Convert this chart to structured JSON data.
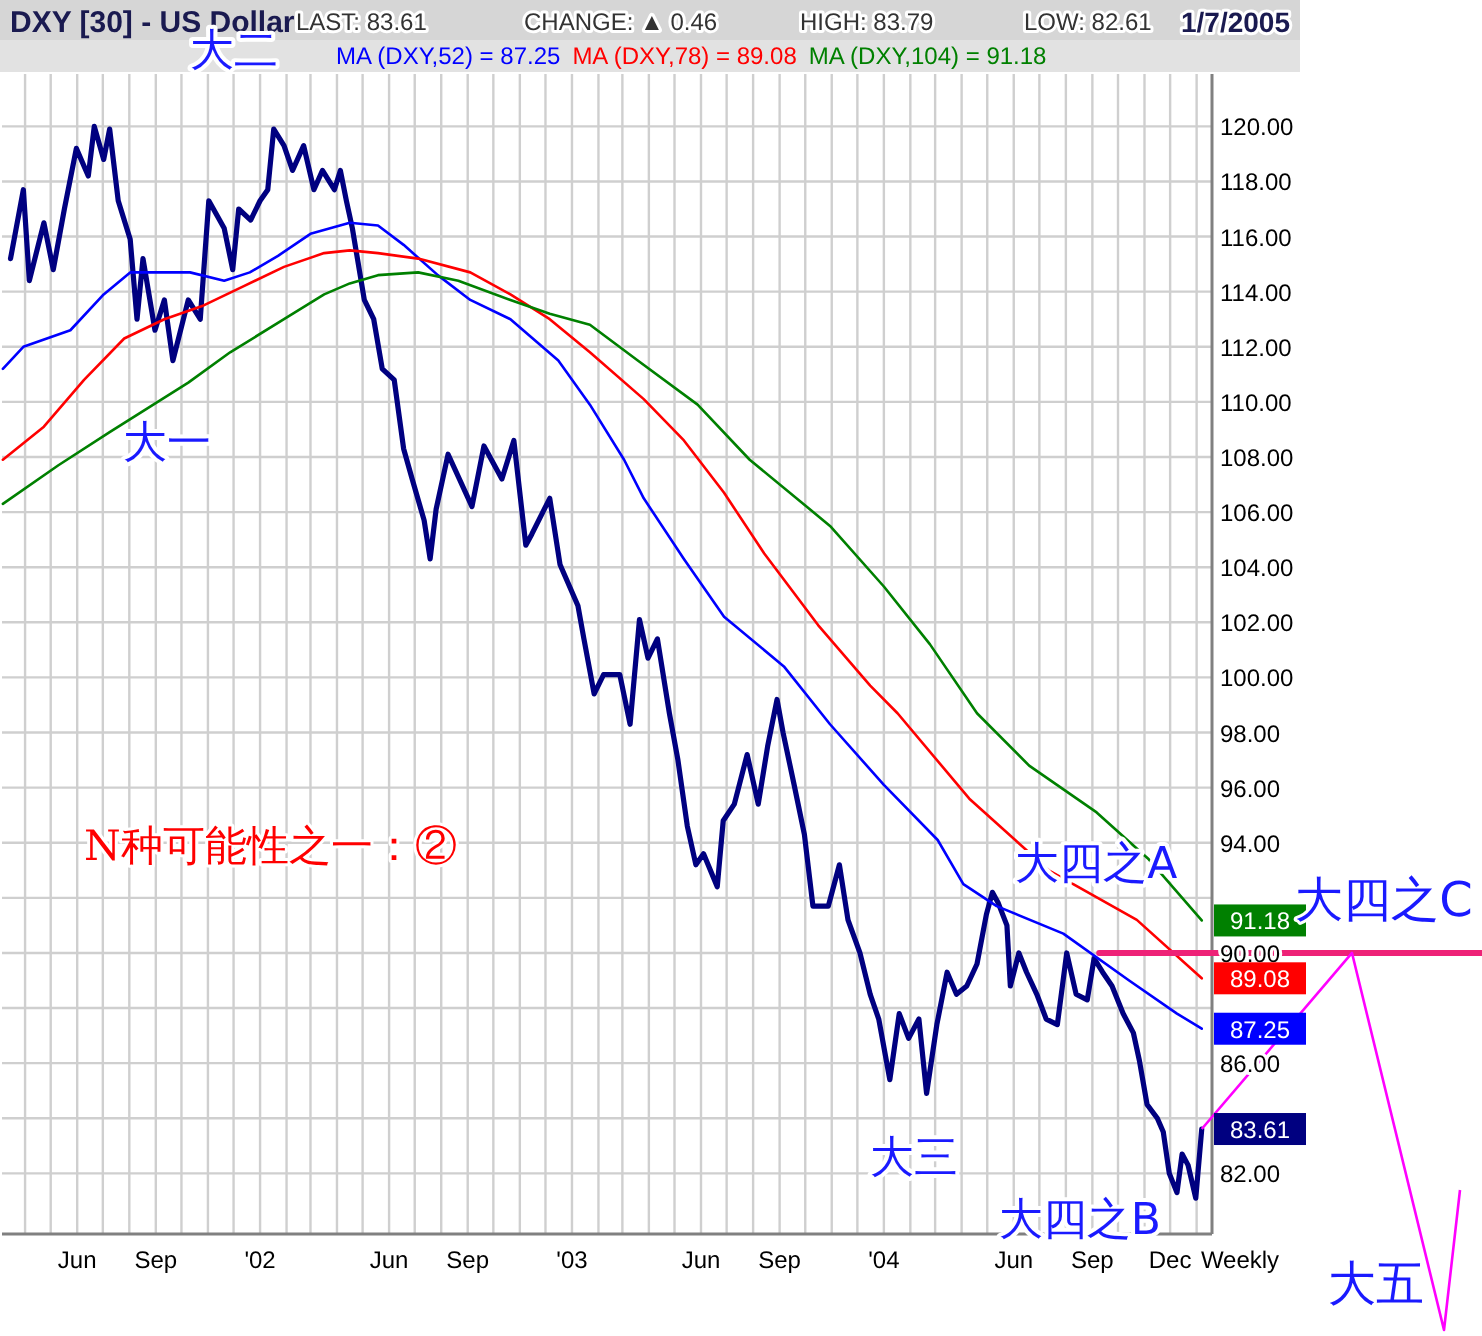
{
  "chart_data": {
    "type": "line",
    "title": "DXY [30] - US Dollar",
    "xlim": [
      "2001-03-05",
      "2005-01-19"
    ],
    "ylim": [
      79.8,
      121.9
    ],
    "xticks": [
      {
        "value": "2001-04-01",
        "label": null
      },
      {
        "value": "2001-05-01",
        "label": null
      },
      {
        "value": "2001-06-01",
        "label": "Jun"
      },
      {
        "value": "2001-07-01",
        "label": null
      },
      {
        "value": "2001-08-01",
        "label": null
      },
      {
        "value": "2001-09-01",
        "label": "Sep"
      },
      {
        "value": "2001-10-01",
        "label": null
      },
      {
        "value": "2001-11-01",
        "label": null
      },
      {
        "value": "2001-12-01",
        "label": null
      },
      {
        "value": "2002-01-01",
        "label": "'02"
      },
      {
        "value": "2002-02-01",
        "label": null
      },
      {
        "value": "2002-03-01",
        "label": null
      },
      {
        "value": "2002-04-01",
        "label": null
      },
      {
        "value": "2002-05-01",
        "label": null
      },
      {
        "value": "2002-06-01",
        "label": "Jun"
      },
      {
        "value": "2002-07-01",
        "label": null
      },
      {
        "value": "2002-08-01",
        "label": null
      },
      {
        "value": "2002-09-01",
        "label": "Sep"
      },
      {
        "value": "2002-10-01",
        "label": null
      },
      {
        "value": "2002-11-01",
        "label": null
      },
      {
        "value": "2002-12-01",
        "label": null
      },
      {
        "value": "2003-01-01",
        "label": "'03"
      },
      {
        "value": "2003-02-01",
        "label": null
      },
      {
        "value": "2003-03-01",
        "label": null
      },
      {
        "value": "2003-04-01",
        "label": null
      },
      {
        "value": "2003-05-01",
        "label": null
      },
      {
        "value": "2003-06-01",
        "label": "Jun"
      },
      {
        "value": "2003-07-01",
        "label": null
      },
      {
        "value": "2003-08-01",
        "label": null
      },
      {
        "value": "2003-09-01",
        "label": "Sep"
      },
      {
        "value": "2003-10-01",
        "label": null
      },
      {
        "value": "2003-11-01",
        "label": null
      },
      {
        "value": "2003-12-01",
        "label": null
      },
      {
        "value": "2004-01-01",
        "label": "'04"
      },
      {
        "value": "2004-02-01",
        "label": null
      },
      {
        "value": "2004-03-01",
        "label": null
      },
      {
        "value": "2004-04-01",
        "label": null
      },
      {
        "value": "2004-05-01",
        "label": null
      },
      {
        "value": "2004-06-01",
        "label": "Jun"
      },
      {
        "value": "2004-07-01",
        "label": null
      },
      {
        "value": "2004-08-01",
        "label": null
      },
      {
        "value": "2004-09-01",
        "label": "Sep"
      },
      {
        "value": "2004-10-01",
        "label": null
      },
      {
        "value": "2004-11-01",
        "label": null
      },
      {
        "value": "2004-12-01",
        "label": "Dec"
      },
      {
        "value": "2005-01-01",
        "label": null
      }
    ],
    "yticks": [
      {
        "value": 82,
        "label": "82.00"
      },
      {
        "value": 84,
        "label": null
      },
      {
        "value": 86,
        "label": "86.00"
      },
      {
        "value": 88,
        "label": null
      },
      {
        "value": 90,
        "label": "90.00"
      },
      {
        "value": 92,
        "label": null
      },
      {
        "value": 94,
        "label": "94.00"
      },
      {
        "value": 96,
        "label": "96.00"
      },
      {
        "value": 98,
        "label": "98.00"
      },
      {
        "value": 100,
        "label": "100.00"
      },
      {
        "value": 102,
        "label": "102.00"
      },
      {
        "value": 104,
        "label": "104.00"
      },
      {
        "value": 106,
        "label": "106.00"
      },
      {
        "value": 108,
        "label": "108.00"
      },
      {
        "value": 110,
        "label": "110.00"
      },
      {
        "value": 112,
        "label": "112.00"
      },
      {
        "value": 114,
        "label": "114.00"
      },
      {
        "value": 116,
        "label": "116.00"
      },
      {
        "value": 118,
        "label": "118.00"
      },
      {
        "value": 120,
        "label": "120.00"
      }
    ],
    "grid": true,
    "legend": "top",
    "marker": "none",
    "line_style": "solid",
    "series": [
      {
        "type": "line",
        "color": "#000080",
        "x": [
          "2001-03-15",
          "2001-03-30",
          "2001-04-06",
          "2001-04-23",
          "2001-05-04",
          "2001-05-17",
          "2001-05-31",
          "2001-06-14",
          "2001-06-21",
          "2001-07-02",
          "2001-07-09",
          "2001-07-19",
          "2001-08-02",
          "2001-08-10",
          "2001-08-17",
          "2001-08-31",
          "2001-09-11",
          "2001-09-21",
          "2001-10-09",
          "2001-10-23",
          "2001-11-02",
          "2001-11-20",
          "2001-11-30",
          "2001-12-07",
          "2001-12-21",
          "2002-01-01",
          "2002-01-10",
          "2002-01-17",
          "2002-01-29",
          "2002-02-08",
          "2002-02-21",
          "2002-03-05",
          "2002-03-15",
          "2002-03-29",
          "2002-04-05",
          "2002-04-12",
          "2002-04-19",
          "2002-05-03",
          "2002-05-14",
          "2002-05-24",
          "2002-06-07",
          "2002-06-18",
          "2002-06-28",
          "2002-07-12",
          "2002-07-19",
          "2002-07-26",
          "2002-08-09",
          "2002-09-06",
          "2002-09-20",
          "2002-10-11",
          "2002-10-25",
          "2002-11-08",
          "2002-11-15",
          "2002-12-06",
          "2002-12-18",
          "2003-01-08",
          "2003-01-15",
          "2003-01-27",
          "2003-02-07",
          "2003-02-26",
          "2003-03-10",
          "2003-03-21",
          "2003-03-31",
          "2003-04-11",
          "2003-04-25",
          "2003-05-05",
          "2003-05-16",
          "2003-05-26",
          "2003-06-04",
          "2003-06-20",
          "2003-06-27",
          "2003-07-10",
          "2003-07-25",
          "2003-08-07",
          "2003-08-18",
          "2003-08-29",
          "2003-09-05",
          "2003-09-18",
          "2003-09-30",
          "2003-10-10",
          "2003-10-28",
          "2003-11-10",
          "2003-11-20",
          "2003-12-04",
          "2003-12-16",
          "2003-12-26",
          "2004-01-08",
          "2004-01-19",
          "2004-01-30",
          "2004-02-11",
          "2004-02-20",
          "2004-03-03",
          "2004-03-15",
          "2004-03-26",
          "2004-04-07",
          "2004-04-19",
          "2004-04-30",
          "2004-05-07",
          "2004-05-14",
          "2004-05-24",
          "2004-05-28",
          "2004-06-07",
          "2004-06-16",
          "2004-06-28",
          "2004-07-09",
          "2004-07-22",
          "2004-08-02",
          "2004-08-13",
          "2004-08-26",
          "2004-09-03",
          "2004-09-13",
          "2004-09-24",
          "2004-10-07",
          "2004-10-19",
          "2004-10-26",
          "2004-11-04",
          "2004-11-16",
          "2004-11-23",
          "2004-11-30",
          "2004-12-09",
          "2004-12-15",
          "2004-12-22",
          "2004-12-31",
          "2005-01-07"
        ],
        "values": [
          115.2,
          117.7,
          114.4,
          116.5,
          114.8,
          117.0,
          119.2,
          118.2,
          120.0,
          118.8,
          119.9,
          117.3,
          115.9,
          113.0,
          115.2,
          112.6,
          113.7,
          111.5,
          113.7,
          113.0,
          117.3,
          116.3,
          114.8,
          117.0,
          116.6,
          117.3,
          117.7,
          119.9,
          119.3,
          118.4,
          119.3,
          117.7,
          118.4,
          117.7,
          118.4,
          117.3,
          116.3,
          113.7,
          113.0,
          111.2,
          110.8,
          108.3,
          107.2,
          105.7,
          104.3,
          106.1,
          108.1,
          106.2,
          108.4,
          107.2,
          108.6,
          104.8,
          105.2,
          106.5,
          104.1,
          102.6,
          101.4,
          99.4,
          100.1,
          100.1,
          98.3,
          102.1,
          100.7,
          101.4,
          98.7,
          97.0,
          94.6,
          93.2,
          93.6,
          92.4,
          94.8,
          95.4,
          97.2,
          95.4,
          97.5,
          99.2,
          98.0,
          96.1,
          94.3,
          91.7,
          91.7,
          93.2,
          91.2,
          90.0,
          88.5,
          87.6,
          85.4,
          87.8,
          86.9,
          87.6,
          84.9,
          87.4,
          89.3,
          88.5,
          88.8,
          89.6,
          91.4,
          92.2,
          91.8,
          91.0,
          88.8,
          90.0,
          89.3,
          88.5,
          87.6,
          87.4,
          90.0,
          88.5,
          88.3,
          89.8,
          89.3,
          88.8,
          87.8,
          87.1,
          86.1,
          84.5,
          84.0,
          83.5,
          82.0,
          81.3,
          82.7,
          82.3,
          81.1,
          83.61
        ],
        "value_labels": [
          null,
          null,
          null,
          null,
          null,
          null,
          null,
          null,
          null,
          null,
          null,
          null,
          null,
          null,
          null,
          null,
          null,
          null,
          null,
          null,
          null,
          null,
          null,
          null,
          null,
          null,
          null,
          null,
          null,
          null,
          null,
          null,
          null,
          null,
          null,
          null,
          null,
          null,
          null,
          null,
          null,
          null,
          null,
          null,
          null,
          null,
          null,
          null,
          null,
          null,
          null,
          null,
          null,
          null,
          null,
          null,
          null,
          null,
          null,
          null,
          null,
          null,
          null,
          null,
          null,
          null,
          null,
          null,
          null,
          null,
          null,
          null,
          null,
          null,
          null,
          null,
          null,
          null,
          null,
          null,
          null,
          null,
          null,
          null,
          null,
          null,
          null,
          null,
          null,
          null,
          null,
          null,
          null,
          null,
          null,
          null,
          null,
          null,
          null,
          null,
          null,
          null,
          null,
          null,
          null,
          null,
          null,
          null,
          null,
          null,
          null,
          null,
          null,
          null,
          null,
          null,
          null,
          null,
          null,
          null,
          null,
          null,
          null,
          "83.61"
        ]
      },
      {
        "type": "line",
        "name": "MA (DXY,52) = 87.25",
        "color": "#0000ff",
        "x": [
          "2001-03-06",
          "2001-03-30",
          "2001-05-24",
          "2001-07-02",
          "2001-08-02",
          "2001-10-11",
          "2001-11-20",
          "2001-12-20",
          "2002-01-22",
          "2002-03-01",
          "2002-04-16",
          "2002-05-19",
          "2002-06-18",
          "2002-07-28",
          "2002-09-04",
          "2002-10-21",
          "2002-12-16",
          "2003-01-22",
          "2003-03-03",
          "2003-03-26",
          "2003-05-12",
          "2003-06-28",
          "2003-09-06",
          "2003-10-30",
          "2004-01-01",
          "2004-03-04",
          "2004-04-03",
          "2004-05-12",
          "2004-07-29",
          "2004-10-14",
          "2004-12-09",
          "2005-01-07"
        ],
        "values": [
          111.2,
          112.0,
          112.6,
          113.9,
          114.7,
          114.7,
          114.4,
          114.7,
          115.3,
          116.1,
          116.5,
          116.4,
          115.7,
          114.6,
          113.7,
          113.0,
          111.5,
          109.9,
          107.9,
          106.5,
          104.3,
          102.2,
          100.4,
          98.3,
          96.1,
          94.1,
          92.5,
          91.7,
          90.7,
          89.0,
          87.8,
          87.25
        ],
        "value_labels": [
          null,
          null,
          null,
          null,
          null,
          null,
          null,
          null,
          null,
          null,
          null,
          null,
          null,
          null,
          null,
          null,
          null,
          null,
          null,
          null,
          null,
          null,
          null,
          null,
          null,
          null,
          null,
          null,
          null,
          null,
          null,
          "87.25"
        ]
      },
      {
        "type": "line",
        "name": "MA (DXY,78) = 89.08",
        "color": "#ff0000",
        "x": [
          "2001-03-06",
          "2001-04-23",
          "2001-06-09",
          "2001-07-26",
          "2001-09-11",
          "2001-10-27",
          "2001-12-13",
          "2002-01-29",
          "2002-03-17",
          "2002-04-16",
          "2002-05-19",
          "2002-07-05",
          "2002-09-04",
          "2002-10-21",
          "2002-12-06",
          "2003-01-22",
          "2003-03-26",
          "2003-05-12",
          "2003-06-28",
          "2003-08-14",
          "2003-10-16",
          "2003-12-16",
          "2004-01-17",
          "2004-04-10",
          "2004-07-12",
          "2004-10-23",
          "2005-01-07"
        ],
        "values": [
          107.9,
          109.1,
          110.8,
          112.3,
          113.0,
          113.5,
          114.2,
          114.9,
          115.4,
          115.5,
          115.4,
          115.2,
          114.7,
          113.9,
          113.0,
          111.8,
          110.1,
          108.6,
          106.7,
          104.5,
          101.9,
          99.7,
          98.7,
          95.6,
          93.0,
          91.2,
          89.08
        ],
        "value_labels": [
          null,
          null,
          null,
          null,
          null,
          null,
          null,
          null,
          null,
          null,
          null,
          null,
          null,
          null,
          null,
          null,
          null,
          null,
          null,
          null,
          null,
          null,
          null,
          null,
          null,
          null,
          "89.08"
        ]
      },
      {
        "type": "line",
        "name": "MA (DXY,104) = 91.18",
        "color": "#008000",
        "x": [
          "2001-03-06",
          "2001-05-10",
          "2001-07-09",
          "2001-10-09",
          "2001-11-27",
          "2002-01-29",
          "2002-03-17",
          "2002-04-16",
          "2002-05-19",
          "2002-07-05",
          "2002-08-21",
          "2002-10-21",
          "2002-12-06",
          "2003-01-22",
          "2003-03-19",
          "2003-05-28",
          "2003-07-28",
          "2003-10-30",
          "2004-01-01",
          "2004-02-24",
          "2004-04-19",
          "2004-06-19",
          "2004-09-06",
          "2004-11-06",
          "2005-01-07"
        ],
        "values": [
          106.3,
          107.7,
          108.9,
          110.7,
          111.8,
          113.0,
          113.9,
          114.3,
          114.6,
          114.7,
          114.4,
          113.7,
          113.2,
          112.8,
          111.5,
          109.9,
          107.9,
          105.5,
          103.3,
          101.2,
          98.7,
          96.8,
          95.1,
          93.4,
          91.18
        ],
        "value_labels": [
          null,
          null,
          null,
          null,
          null,
          null,
          null,
          null,
          null,
          null,
          null,
          null,
          null,
          null,
          null,
          null,
          null,
          null,
          null,
          null,
          null,
          null,
          null,
          null,
          "91.18"
        ]
      },
      {
        "type": "line",
        "color": "#ee2277",
        "x": [
          "2004-09-09",
          "2005-01-19"
        ],
        "values": [
          90,
          90
        ]
      }
    ],
    "annotations": [
      "LAST: 83.61",
      "CHANGE: ▲ 0.46",
      "HIGH: 83.79",
      "LOW: 82.61",
      "1/7/2005",
      "Weekly",
      "N种可能性之一：②",
      "大四之C",
      "大五",
      {
        "text": "大二",
        "x": "2002-01-17",
        "y": 119.9
      },
      {
        "text": "大一",
        "x": "2001-09-21",
        "y": 111.5
      },
      {
        "text": "大三",
        "x": "2004-01-08",
        "y": 85.4
      },
      {
        "text": "大四之A",
        "x": "2004-05-07",
        "y": 92.2
      },
      {
        "text": "大四之B",
        "x": "2004-12-31",
        "y": 81.1
      }
    ]
  }
}
